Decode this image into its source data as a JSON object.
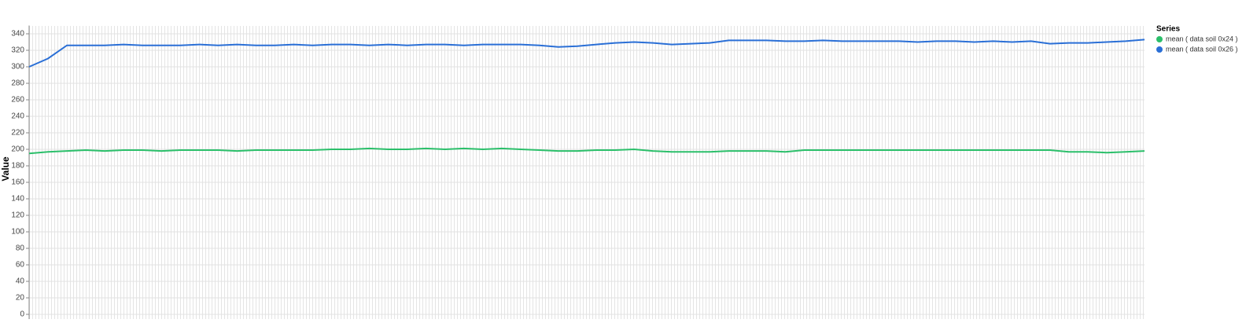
{
  "chart_data": {
    "type": "line",
    "y_label": "Value",
    "legend_title": "Series",
    "legend": "top-right",
    "grid": true,
    "ylim": [
      0,
      350
    ],
    "yticks": [
      0,
      20,
      40,
      60,
      80,
      100,
      120,
      140,
      160,
      180,
      200,
      220,
      240,
      260,
      280,
      300,
      320,
      340
    ],
    "series": [
      {
        "name": "mean ( data soil 0x24 )",
        "color": "#2bbf6a",
        "values": [
          195,
          197,
          198,
          199,
          198,
          199,
          199,
          198,
          199,
          199,
          199,
          198,
          199,
          199,
          199,
          199,
          200,
          200,
          201,
          200,
          200,
          201,
          200,
          201,
          200,
          201,
          200,
          199,
          198,
          198,
          199,
          199,
          200,
          198,
          197,
          197,
          197,
          198,
          198,
          198,
          197,
          199,
          199,
          199,
          199,
          199,
          199,
          199,
          199,
          199,
          199,
          199,
          199,
          199,
          199,
          197,
          197,
          196,
          197,
          198
        ]
      },
      {
        "name": "mean ( data soil 0x26 )",
        "color": "#2a6fd6",
        "values": [
          300,
          310,
          326,
          326,
          326,
          327,
          326,
          326,
          326,
          327,
          326,
          327,
          326,
          326,
          327,
          326,
          327,
          327,
          326,
          327,
          326,
          327,
          327,
          326,
          327,
          327,
          327,
          326,
          324,
          325,
          327,
          329,
          330,
          329,
          327,
          328,
          329,
          332,
          332,
          332,
          331,
          331,
          332,
          331,
          331,
          331,
          331,
          330,
          331,
          331,
          330,
          331,
          330,
          331,
          328,
          329,
          329,
          330,
          331,
          333
        ]
      }
    ]
  }
}
